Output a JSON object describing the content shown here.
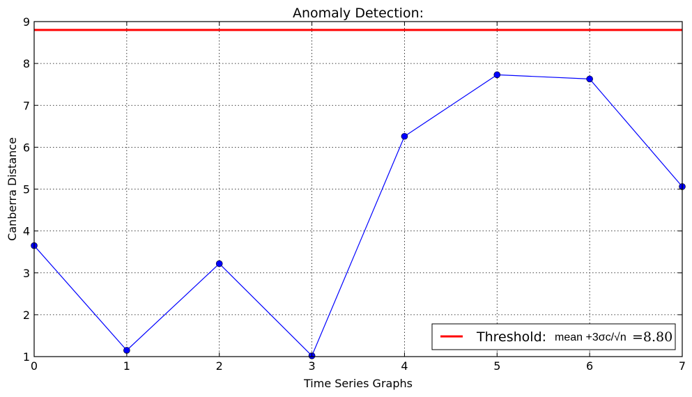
{
  "chart_data": {
    "type": "line",
    "title": "Anomaly Detection:",
    "xlabel": "Time Series Graphs",
    "ylabel": "Canberra Distance",
    "xlim": [
      0,
      7
    ],
    "ylim": [
      1,
      9
    ],
    "x_ticks": [
      0,
      1,
      2,
      3,
      4,
      5,
      6,
      7
    ],
    "y_ticks": [
      1,
      2,
      3,
      4,
      5,
      6,
      7,
      8,
      9
    ],
    "grid": true,
    "legend_position": "lower-right",
    "series": [
      {
        "x": [
          0,
          1,
          2,
          3,
          4,
          5,
          6,
          7
        ],
        "values": [
          3.65,
          1.15,
          3.22,
          1.02,
          6.26,
          7.73,
          7.63,
          5.06
        ],
        "color": "#0000ff",
        "marker": "circle"
      }
    ],
    "threshold": {
      "value": 8.8,
      "color": "#ff0000",
      "legend_label": "Threshold:",
      "legend_formula": "mean +3σc/√n",
      "legend_value_text": "=8.80"
    }
  }
}
